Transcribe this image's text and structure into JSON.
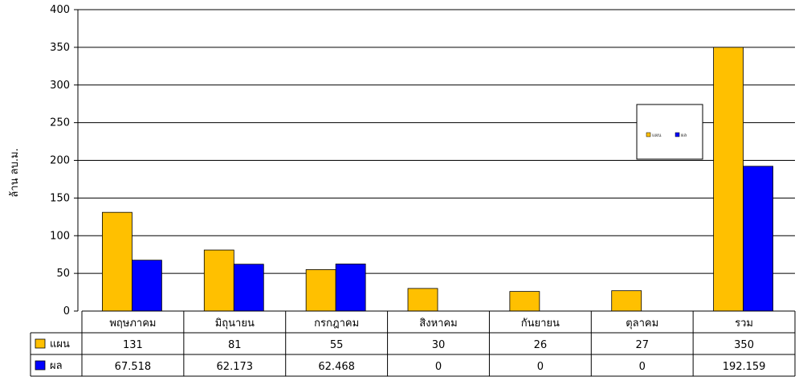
{
  "chart_data": {
    "type": "bar",
    "ylabel": "ล้าน ลบ.ม.",
    "ylim": [
      0,
      400
    ],
    "yticks": [
      "0",
      "50",
      "100",
      "150",
      "200",
      "250",
      "300",
      "350",
      "400"
    ],
    "grid": true,
    "legend_position": "right",
    "categories": [
      "พฤษภาคม",
      "มิถุนายน",
      "กรกฎาคม",
      "สิงหาคม",
      "กันยายน",
      "ตุลาคม",
      "รวม"
    ],
    "series": [
      {
        "name": "แผน",
        "color": "#FFC000",
        "values": [
          131,
          81,
          55,
          30,
          26,
          27,
          350
        ],
        "labels": [
          "131",
          "81",
          "55",
          "30",
          "26",
          "27",
          "350"
        ]
      },
      {
        "name": "ผล",
        "color": "#0000FF",
        "values": [
          67.518,
          62.173,
          62.468,
          0,
          0,
          0,
          192.159
        ],
        "labels": [
          "67.518",
          "62.173",
          "62.468",
          "0",
          "0",
          "0",
          "192.159"
        ]
      }
    ]
  }
}
